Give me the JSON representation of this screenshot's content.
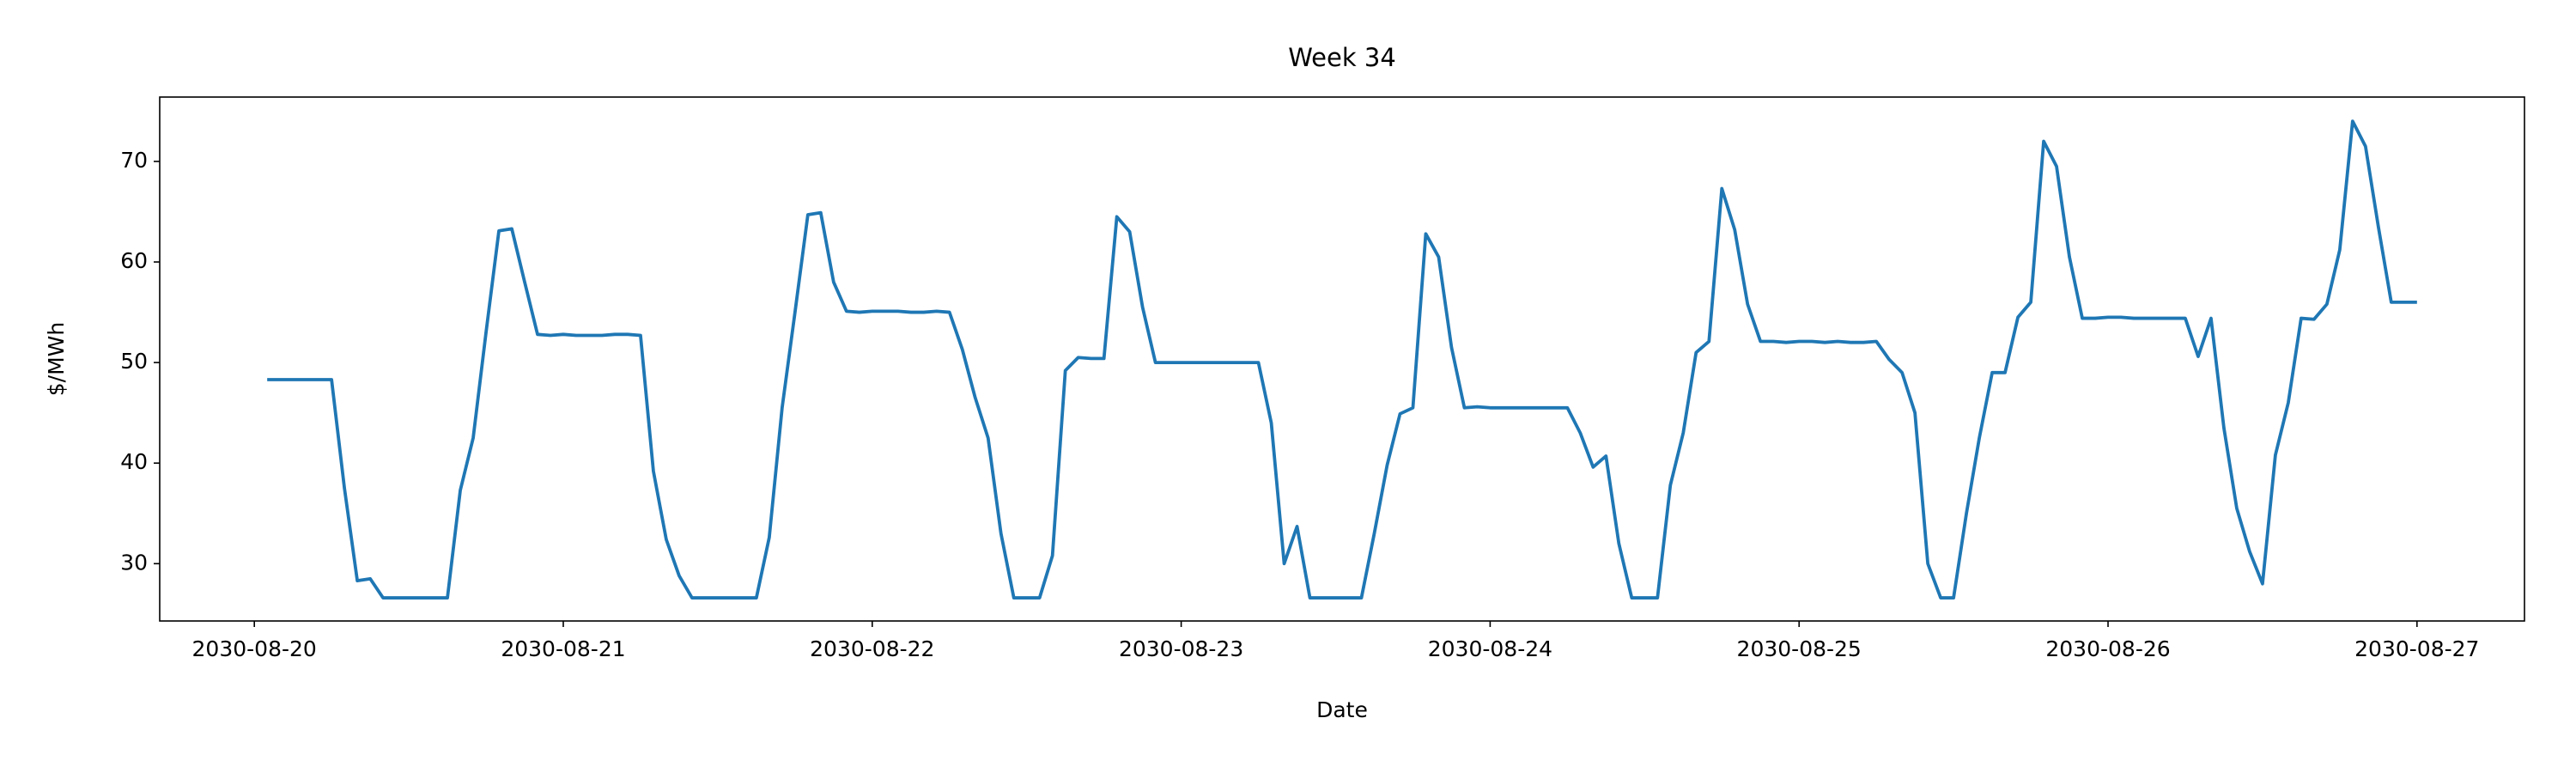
{
  "chart_data": {
    "type": "line",
    "title": "Week 34",
    "xlabel": "Date",
    "ylabel": "$/MWh",
    "color": "#1f77b4",
    "x": [
      "2030-08-20 01:00",
      "2030-08-20 02:00",
      "2030-08-20 03:00",
      "2030-08-20 04:00",
      "2030-08-20 05:00",
      "2030-08-20 06:00",
      "2030-08-20 07:00",
      "2030-08-20 08:00",
      "2030-08-20 09:00",
      "2030-08-20 10:00",
      "2030-08-20 11:00",
      "2030-08-20 12:00",
      "2030-08-20 13:00",
      "2030-08-20 14:00",
      "2030-08-20 15:00",
      "2030-08-20 16:00",
      "2030-08-20 17:00",
      "2030-08-20 18:00",
      "2030-08-20 19:00",
      "2030-08-20 20:00",
      "2030-08-20 21:00",
      "2030-08-20 22:00",
      "2030-08-20 23:00",
      "2030-08-21 00:00",
      "2030-08-21 01:00",
      "2030-08-21 02:00",
      "2030-08-21 03:00",
      "2030-08-21 04:00",
      "2030-08-21 05:00",
      "2030-08-21 06:00",
      "2030-08-21 07:00",
      "2030-08-21 08:00",
      "2030-08-21 09:00",
      "2030-08-21 10:00",
      "2030-08-21 11:00",
      "2030-08-21 12:00",
      "2030-08-21 13:00",
      "2030-08-21 14:00",
      "2030-08-21 15:00",
      "2030-08-21 16:00",
      "2030-08-21 17:00",
      "2030-08-21 18:00",
      "2030-08-21 19:00",
      "2030-08-21 20:00",
      "2030-08-21 21:00",
      "2030-08-21 22:00",
      "2030-08-21 23:00",
      "2030-08-22 00:00",
      "2030-08-22 01:00",
      "2030-08-22 02:00",
      "2030-08-22 03:00",
      "2030-08-22 04:00",
      "2030-08-22 05:00",
      "2030-08-22 06:00",
      "2030-08-22 07:00",
      "2030-08-22 08:00",
      "2030-08-22 09:00",
      "2030-08-22 10:00",
      "2030-08-22 11:00",
      "2030-08-22 12:00",
      "2030-08-22 13:00",
      "2030-08-22 14:00",
      "2030-08-22 15:00",
      "2030-08-22 16:00",
      "2030-08-22 17:00",
      "2030-08-22 18:00",
      "2030-08-22 19:00",
      "2030-08-22 20:00",
      "2030-08-22 21:00",
      "2030-08-22 22:00",
      "2030-08-22 23:00",
      "2030-08-23 00:00",
      "2030-08-23 01:00",
      "2030-08-23 02:00",
      "2030-08-23 03:00",
      "2030-08-23 04:00",
      "2030-08-23 05:00",
      "2030-08-23 06:00",
      "2030-08-23 07:00",
      "2030-08-23 08:00",
      "2030-08-23 09:00",
      "2030-08-23 10:00",
      "2030-08-23 11:00",
      "2030-08-23 12:00",
      "2030-08-23 13:00",
      "2030-08-23 14:00",
      "2030-08-23 15:00",
      "2030-08-23 16:00",
      "2030-08-23 17:00",
      "2030-08-23 18:00",
      "2030-08-23 19:00",
      "2030-08-23 20:00",
      "2030-08-23 21:00",
      "2030-08-23 22:00",
      "2030-08-23 23:00",
      "2030-08-24 00:00",
      "2030-08-24 01:00",
      "2030-08-24 02:00",
      "2030-08-24 03:00",
      "2030-08-24 04:00",
      "2030-08-24 05:00",
      "2030-08-24 06:00",
      "2030-08-24 07:00",
      "2030-08-24 08:00",
      "2030-08-24 09:00",
      "2030-08-24 10:00",
      "2030-08-24 11:00",
      "2030-08-24 12:00",
      "2030-08-24 13:00",
      "2030-08-24 14:00",
      "2030-08-24 15:00",
      "2030-08-24 16:00",
      "2030-08-24 17:00",
      "2030-08-24 18:00",
      "2030-08-24 19:00",
      "2030-08-24 20:00",
      "2030-08-24 21:00",
      "2030-08-24 22:00",
      "2030-08-24 23:00",
      "2030-08-25 00:00",
      "2030-08-25 01:00",
      "2030-08-25 02:00",
      "2030-08-25 03:00",
      "2030-08-25 04:00",
      "2030-08-25 05:00",
      "2030-08-25 06:00",
      "2030-08-25 07:00",
      "2030-08-25 08:00",
      "2030-08-25 09:00",
      "2030-08-25 10:00",
      "2030-08-25 11:00",
      "2030-08-25 12:00",
      "2030-08-25 13:00",
      "2030-08-25 14:00",
      "2030-08-25 15:00",
      "2030-08-25 16:00",
      "2030-08-25 17:00",
      "2030-08-25 18:00",
      "2030-08-25 19:00",
      "2030-08-25 20:00",
      "2030-08-25 21:00",
      "2030-08-25 22:00",
      "2030-08-25 23:00",
      "2030-08-26 00:00",
      "2030-08-26 01:00",
      "2030-08-26 02:00",
      "2030-08-26 03:00",
      "2030-08-26 04:00",
      "2030-08-26 05:00",
      "2030-08-26 06:00",
      "2030-08-26 07:00",
      "2030-08-26 08:00",
      "2030-08-26 09:00",
      "2030-08-26 10:00",
      "2030-08-26 11:00",
      "2030-08-26 12:00",
      "2030-08-26 13:00",
      "2030-08-26 14:00",
      "2030-08-26 15:00",
      "2030-08-26 16:00",
      "2030-08-26 17:00",
      "2030-08-26 18:00",
      "2030-08-26 19:00",
      "2030-08-26 20:00",
      "2030-08-26 21:00",
      "2030-08-26 22:00",
      "2030-08-26 23:00",
      "2030-08-27 00:00"
    ],
    "values": [
      48.3,
      48.3,
      48.3,
      48.3,
      48.3,
      48.3,
      37.5,
      28.3,
      28.5,
      26.6,
      26.6,
      26.6,
      26.6,
      26.6,
      26.6,
      37.3,
      42.5,
      53,
      63.1,
      63.3,
      58,
      52.8,
      52.7,
      52.8,
      52.7,
      52.7,
      52.7,
      52.8,
      52.8,
      52.7,
      39.2,
      32.4,
      28.8,
      26.6,
      26.6,
      26.6,
      26.6,
      26.6,
      26.6,
      32.6,
      45.5,
      55,
      64.7,
      64.9,
      58,
      55.1,
      55,
      55.1,
      55.1,
      55.1,
      55,
      55,
      55.1,
      55,
      51.3,
      46.5,
      42.5,
      33,
      26.6,
      26.6,
      26.6,
      30.8,
      49.2,
      50.5,
      50.4,
      50.4,
      64.5,
      63,
      55.5,
      50,
      50,
      50,
      50,
      50,
      50,
      50,
      50,
      50,
      44,
      30,
      33.7,
      26.6,
      26.6,
      26.6,
      26.6,
      26.6,
      33,
      39.8,
      44.9,
      45.5,
      62.8,
      60.5,
      51.5,
      45.5,
      45.6,
      45.5,
      45.5,
      45.5,
      45.5,
      45.5,
      45.5,
      45.5,
      43,
      39.6,
      40.7,
      32,
      26.6,
      26.6,
      26.6,
      37.8,
      43,
      51,
      52.1,
      67.3,
      63.2,
      55.8,
      52.1,
      52.1,
      52,
      52.1,
      52.1,
      52,
      52.1,
      52,
      52,
      52.1,
      50.3,
      49,
      45,
      30,
      26.6,
      26.6,
      35,
      42.5,
      49,
      49,
      54.5,
      56,
      72,
      69.5,
      60.5,
      54.4,
      54.4,
      54.5,
      54.5,
      54.4,
      54.4,
      54.4,
      54.4,
      54.4,
      50.6,
      54.4,
      43.5,
      35.5,
      31.2,
      28,
      40.8,
      46,
      54.4,
      54.3,
      55.8,
      61.2,
      74,
      71.5,
      63.5,
      56,
      56,
      56
    ],
    "xlim": [
      "2030-08-19 16:39",
      "2030-08-27 08:21"
    ],
    "xticks": [
      "2030-08-20",
      "2030-08-21",
      "2030-08-22",
      "2030-08-23",
      "2030-08-24",
      "2030-08-25",
      "2030-08-26",
      "2030-08-27"
    ],
    "ylim": [
      24.3,
      76.4
    ],
    "yticks": [
      30,
      40,
      50,
      60,
      70
    ]
  }
}
